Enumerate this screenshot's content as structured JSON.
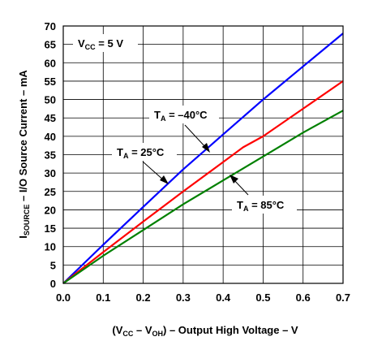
{
  "chart_data": {
    "type": "line",
    "xlabel_parts": [
      "(V",
      "CC",
      " – V",
      "OH",
      ") – Output High Voltage – V"
    ],
    "ylabel_parts": [
      "I",
      "SOURCE",
      " – I/O Source Current – mA"
    ],
    "xlim": [
      0,
      0.7
    ],
    "ylim": [
      0,
      70
    ],
    "x_ticks": [
      "0.0",
      "0.1",
      "0.2",
      "0.3",
      "0.4",
      "0.5",
      "0.6",
      "0.7"
    ],
    "y_ticks": [
      "0",
      "5",
      "10",
      "15",
      "20",
      "25",
      "30",
      "35",
      "40",
      "45",
      "50",
      "55",
      "60",
      "65",
      "70"
    ],
    "grid": true,
    "condition_parts": [
      "V",
      "CC",
      " = 5 V"
    ],
    "series": [
      {
        "label_parts": [
          "T",
          "A",
          " = –40°C"
        ],
        "color": "#0000ff",
        "x": [
          0,
          0.1,
          0.2,
          0.3,
          0.4,
          0.5,
          0.6,
          0.7
        ],
        "y": [
          0,
          10.5,
          20.8,
          31,
          40.5,
          50,
          59,
          68
        ]
      },
      {
        "label_parts": [
          "T",
          "A",
          " = 25°C"
        ],
        "color": "#ff0000",
        "x": [
          0,
          0.1,
          0.2,
          0.3,
          0.4,
          0.45,
          0.5,
          0.6,
          0.7
        ],
        "y": [
          0,
          8.5,
          16.8,
          25,
          33,
          37,
          40,
          47.5,
          55
        ]
      },
      {
        "label_parts": [
          "T",
          "A",
          " = 85°C"
        ],
        "color": "#008000",
        "x": [
          0,
          0.1,
          0.2,
          0.3,
          0.4,
          0.5,
          0.6,
          0.7
        ],
        "y": [
          0,
          7.5,
          14.5,
          21.5,
          28,
          34.5,
          41,
          47
        ]
      }
    ]
  }
}
